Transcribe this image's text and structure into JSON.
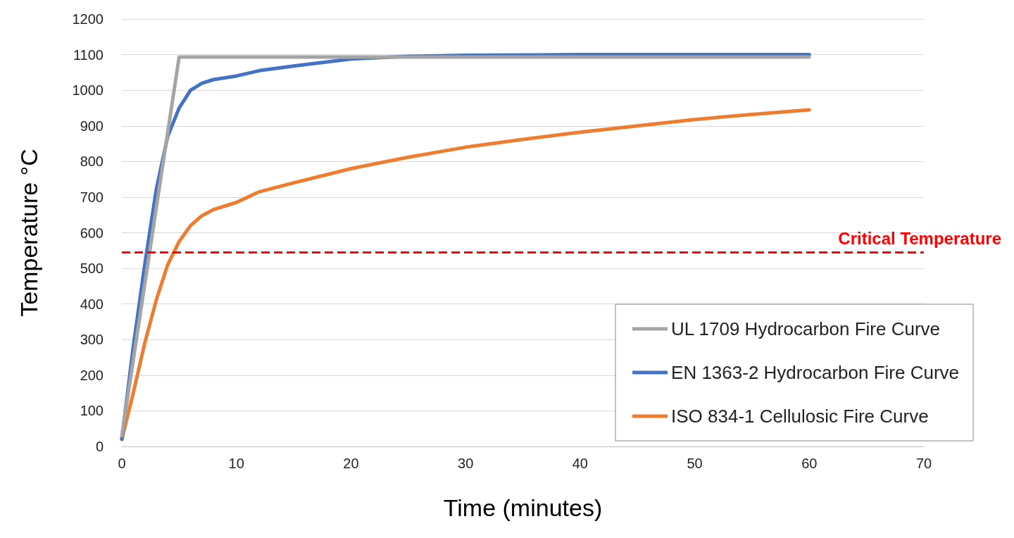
{
  "chart_data": {
    "type": "line",
    "xlabel": "Time (minutes)",
    "ylabel": "Temperature °C",
    "xlim": [
      0,
      70
    ],
    "xticks": [
      0,
      10,
      20,
      30,
      40,
      50,
      60,
      70
    ],
    "ylim": [
      0,
      1200
    ],
    "yticks": [
      0,
      100,
      200,
      300,
      400,
      500,
      600,
      700,
      800,
      900,
      1000,
      1100,
      1200
    ],
    "grid": "y",
    "legend": "bottom right",
    "marker": "none",
    "line_style": "solid",
    "series": [
      {
        "name": "UL 1709 Hydrocarbon Fire Curve",
        "color": "#a5a5a5",
        "x": [
          0,
          5,
          60
        ],
        "values": [
          30,
          1093,
          1093
        ]
      },
      {
        "name": "EN 1363-2 Hydrocarbon Fire Curve",
        "color": "#4472c4",
        "x": [
          0,
          1,
          2,
          3,
          4,
          5,
          6,
          7,
          8,
          10,
          12,
          15,
          20,
          25,
          30,
          40,
          60
        ],
        "values": [
          20,
          280,
          510,
          720,
          870,
          950,
          1000,
          1020,
          1030,
          1040,
          1055,
          1068,
          1088,
          1095,
          1098,
          1100,
          1100
        ]
      },
      {
        "name": "ISO 834-1 Cellulosic Fire Curve",
        "color": "#ed7d31",
        "x": [
          0,
          1,
          2,
          3,
          4,
          5,
          6,
          7,
          8,
          10,
          12,
          15,
          20,
          25,
          30,
          35,
          40,
          45,
          50,
          55,
          60
        ],
        "values": [
          20,
          150,
          290,
          410,
          510,
          575,
          620,
          648,
          665,
          685,
          715,
          740,
          780,
          812,
          840,
          862,
          882,
          900,
          918,
          932,
          945
        ]
      }
    ],
    "ref_lines": [
      {
        "axis": "y",
        "value": 545,
        "label": "Critical Temperature",
        "color": "#ff0000",
        "line_style": "dashed"
      }
    ]
  }
}
